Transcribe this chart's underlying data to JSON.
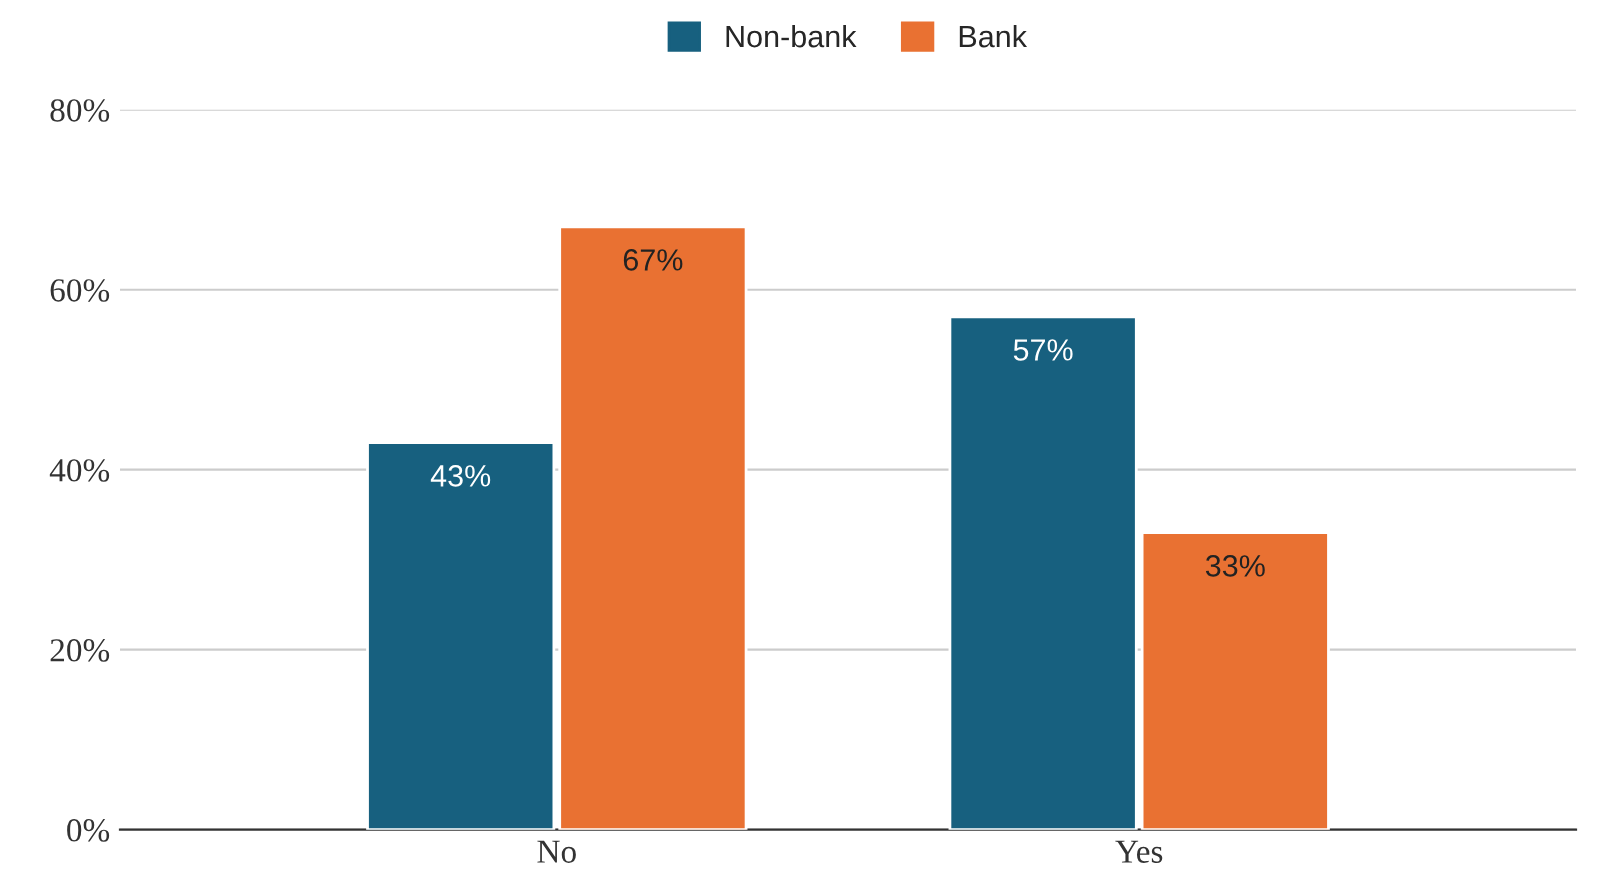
{
  "chart_data": {
    "type": "bar",
    "categories": [
      "No",
      "Yes"
    ],
    "series": [
      {
        "name": "Non-bank",
        "color": "#17607f",
        "values": [
          43,
          57
        ],
        "value_labels": [
          "43%",
          "57%"
        ]
      },
      {
        "name": "Bank",
        "color": "#e97132",
        "values": [
          67,
          33
        ],
        "value_labels": [
          "67%",
          "33%"
        ]
      }
    ],
    "ylim": [
      0,
      80
    ],
    "yticks": [
      {
        "value": 0,
        "label": "0%"
      },
      {
        "value": 20,
        "label": "20%"
      },
      {
        "value": 40,
        "label": "40%"
      },
      {
        "value": 60,
        "label": "60%"
      },
      {
        "value": 80,
        "label": "80%"
      }
    ],
    "grid": "y",
    "legend": "top"
  }
}
